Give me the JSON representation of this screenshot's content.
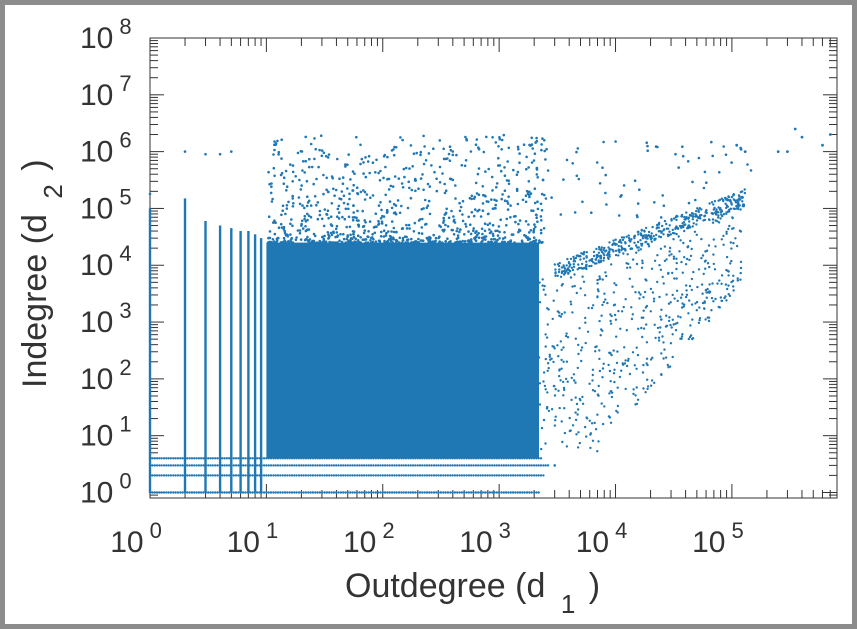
{
  "chart_data": {
    "type": "scatter",
    "title": "",
    "xlabel": "Outdegree (d",
    "xlabel_sub": "1",
    "xlabel_close": ")",
    "ylabel": "Indegree (d",
    "ylabel_sub": "2",
    "ylabel_close": ")",
    "xscale": "log",
    "yscale": "log",
    "xlim": [
      1,
      800000
    ],
    "ylim": [
      0.8,
      100000000
    ],
    "grid": false,
    "legend": "none",
    "x_ticks": [
      {
        "base": "10",
        "exp": "0"
      },
      {
        "base": "10",
        "exp": "1"
      },
      {
        "base": "10",
        "exp": "2"
      },
      {
        "base": "10",
        "exp": "3"
      },
      {
        "base": "10",
        "exp": "4"
      },
      {
        "base": "10",
        "exp": "5"
      }
    ],
    "y_ticks": [
      {
        "base": "10",
        "exp": "0"
      },
      {
        "base": "10",
        "exp": "1"
      },
      {
        "base": "10",
        "exp": "2"
      },
      {
        "base": "10",
        "exp": "3"
      },
      {
        "base": "10",
        "exp": "4"
      },
      {
        "base": "10",
        "exp": "5"
      },
      {
        "base": "10",
        "exp": "6"
      },
      {
        "base": "10",
        "exp": "7"
      },
      {
        "base": "10",
        "exp": "8"
      }
    ],
    "series": [
      {
        "color": "#1f77b4",
        "description_points": [
          {
            "x": 1,
            "y": 1
          },
          {
            "x": 1,
            "y": 10
          },
          {
            "x": 1,
            "y": 1000
          },
          {
            "x": 1,
            "y": 100000
          },
          {
            "x": 2,
            "y": 1000000
          },
          {
            "x": 2,
            "y": 100000
          },
          {
            "x": 3,
            "y": 50000
          },
          {
            "x": 4,
            "y": 50000
          },
          {
            "x": 10,
            "y": 1000000
          },
          {
            "x": 20,
            "y": 2500000
          },
          {
            "x": 100,
            "y": 2000000
          },
          {
            "x": 200,
            "y": 3000000
          },
          {
            "x": 1000,
            "y": 1000000
          },
          {
            "x": 10000,
            "y": 1000000
          },
          {
            "x": 100000,
            "y": 1000000
          },
          {
            "x": 300000,
            "y": 2500000
          },
          {
            "x": 600000,
            "y": 2000000
          },
          {
            "x": 100000,
            "y": 120000
          },
          {
            "x": 10000,
            "y": 20000
          },
          {
            "x": 3000,
            "y": 3
          }
        ]
      }
    ]
  }
}
